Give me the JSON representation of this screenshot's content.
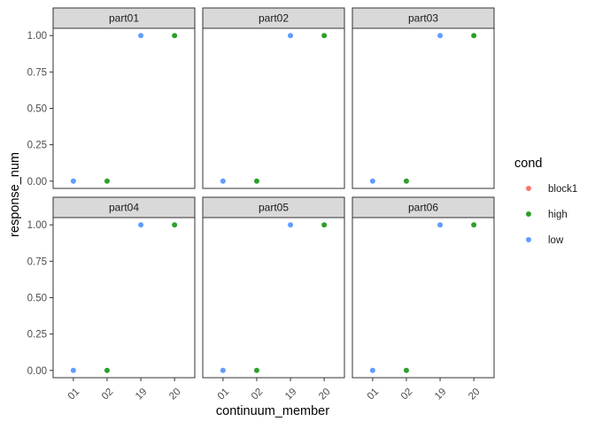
{
  "chart_data": {
    "type": "scatter",
    "facets": [
      "part01",
      "part02",
      "part03",
      "part04",
      "part05",
      "part06"
    ],
    "x_categories": [
      "01",
      "02",
      "19",
      "20"
    ],
    "y_ticks": [
      "0.00",
      "0.25",
      "0.50",
      "0.75",
      "1.00"
    ],
    "ylim": [
      -0.05,
      1.05
    ],
    "xlabel": "continuum_member",
    "ylabel": "response_num",
    "legend": {
      "title": "cond",
      "position": "right",
      "entries": [
        {
          "label": "block1",
          "color": "#F8766D"
        },
        {
          "label": "high",
          "color": "#2CA02C"
        },
        {
          "label": "low",
          "color": "#619CFF"
        }
      ]
    },
    "points": [
      {
        "x": "01",
        "y": 0,
        "cond": "low"
      },
      {
        "x": "02",
        "y": 0,
        "cond": "high"
      },
      {
        "x": "19",
        "y": 1,
        "cond": "low"
      },
      {
        "x": "20",
        "y": 1,
        "cond": "high"
      }
    ],
    "note_points": "same four points in every panel"
  }
}
